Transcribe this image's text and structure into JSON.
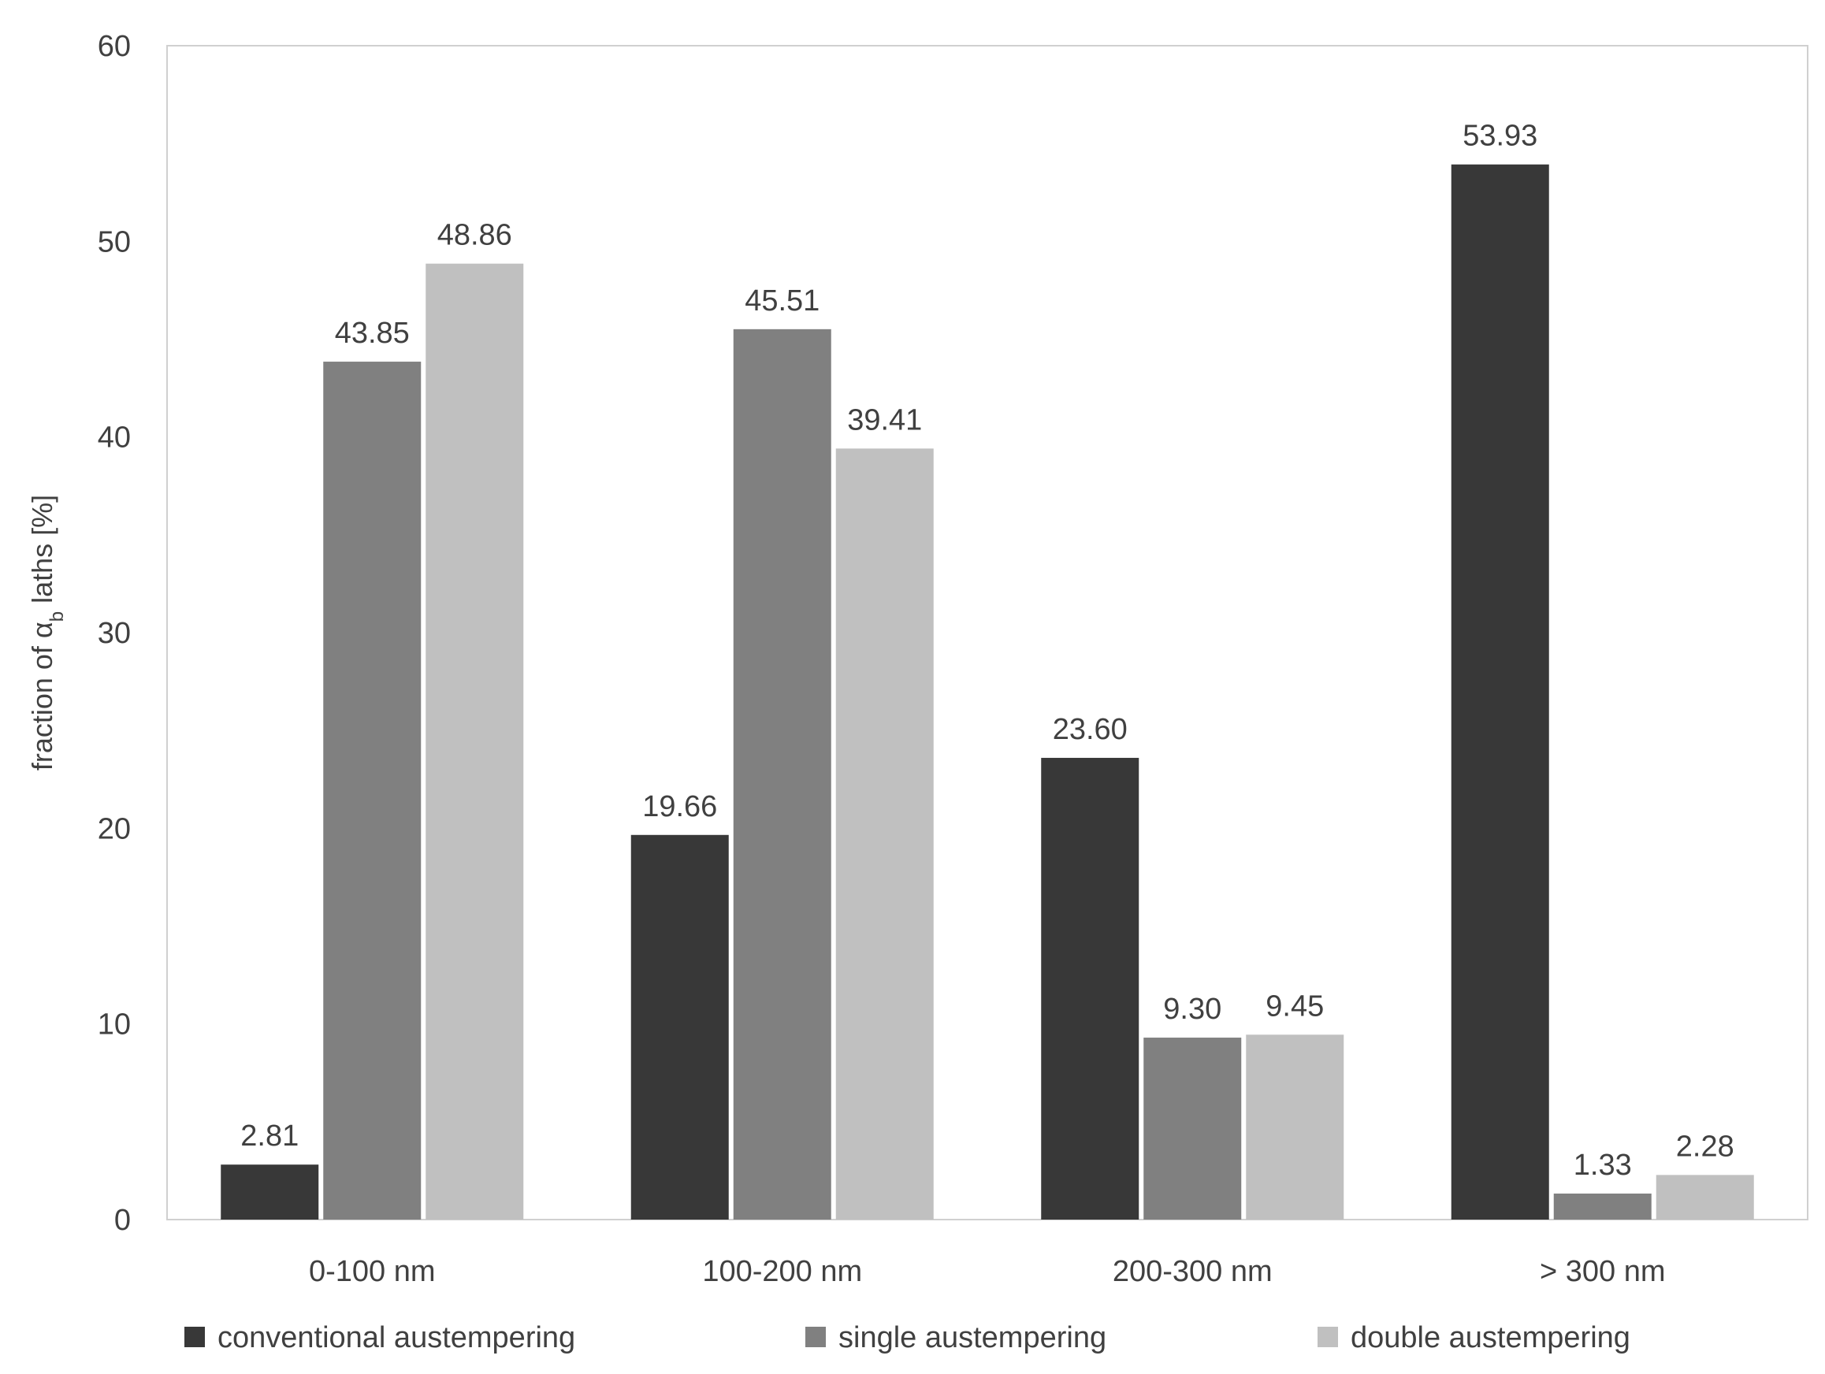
{
  "chart_data": {
    "type": "bar",
    "title": "",
    "xlabel": "",
    "ylabel": "fraction of α",
    "ylabel_subscript": "b",
    "ylabel_suffix": " laths [%]",
    "ylim": [
      0,
      60
    ],
    "yticks": [
      0,
      10,
      20,
      30,
      40,
      50,
      60
    ],
    "grid": false,
    "legend_position": "bottom",
    "categories": [
      "0-100 nm",
      "100-200 nm",
      "200-300 nm",
      "> 300 nm"
    ],
    "series": [
      {
        "name": "conventional austempering",
        "color": "#383838",
        "values": [
          2.81,
          19.66,
          23.6,
          53.93
        ],
        "labels": [
          "2.81",
          "19.66",
          "23.60",
          "53.93"
        ]
      },
      {
        "name": "single austempering",
        "color": "#808080",
        "values": [
          43.85,
          45.51,
          9.3,
          1.33
        ],
        "labels": [
          "43.85",
          "45.51",
          "9.30",
          "1.33"
        ]
      },
      {
        "name": "double austempering",
        "color": "#c0c0c0",
        "values": [
          48.86,
          39.41,
          9.45,
          2.28
        ],
        "labels": [
          "48.86",
          "39.41",
          "9.45",
          "2.28"
        ]
      }
    ]
  }
}
